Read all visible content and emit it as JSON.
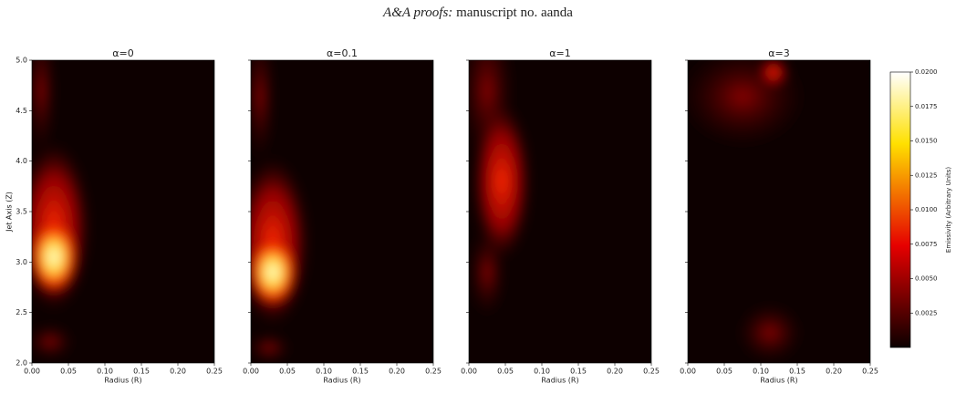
{
  "header": {
    "italic": "A&A proofs:",
    "text": "manuscript no. aanda"
  },
  "chart_data": [
    {
      "type": "heatmap",
      "title": "α=0",
      "xlabel": "Radius (R)",
      "ylabel": "Jet Axis (Z)",
      "xlim": [
        0,
        0.25
      ],
      "ylim": [
        2,
        5
      ],
      "xticks": [
        {
          "value": 0,
          "label": "0.00"
        },
        {
          "value": 0.05,
          "label": "0.05"
        },
        {
          "value": 0.1,
          "label": "0.10"
        },
        {
          "value": 0.15,
          "label": "0.15"
        },
        {
          "value": 0.2,
          "label": "0.20"
        },
        {
          "value": 0.25,
          "label": "0.25"
        }
      ],
      "yticks": [
        {
          "value": 2,
          "label": "2.0"
        },
        2.5,
        {
          "value": 3,
          "label": "3.0"
        },
        3.5,
        {
          "value": 4,
          "label": "4.0"
        },
        4.5,
        {
          "value": 5,
          "label": "5.0"
        }
      ],
      "ytick_labels": true
    },
    {
      "type": "heatmap",
      "title": "α=0.1",
      "xlabel": "Radius (R)",
      "xlim": [
        0,
        0.25
      ],
      "ylim": [
        2,
        5
      ],
      "xticks": [
        {
          "value": 0,
          "label": "0.00"
        },
        {
          "value": 0.05,
          "label": "0.05"
        },
        {
          "value": 0.1,
          "label": "0.10"
        },
        {
          "value": 0.15,
          "label": "0.15"
        },
        {
          "value": 0.2,
          "label": "0.20"
        },
        {
          "value": 0.25,
          "label": "0.25"
        }
      ],
      "yticks": [
        2,
        2.5,
        3,
        3.5,
        4,
        4.5,
        5
      ],
      "ytick_labels": false
    },
    {
      "type": "heatmap",
      "title": "α=1",
      "xlabel": "Radius (R)",
      "xlim": [
        0,
        0.25
      ],
      "ylim": [
        2,
        5
      ],
      "xticks": [
        {
          "value": 0,
          "label": "0.00"
        },
        {
          "value": 0.05,
          "label": "0.05"
        },
        {
          "value": 0.1,
          "label": "0.10"
        },
        {
          "value": 0.15,
          "label": "0.15"
        },
        {
          "value": 0.2,
          "label": "0.20"
        },
        {
          "value": 0.25,
          "label": "0.25"
        }
      ],
      "yticks": [
        2,
        2.5,
        3,
        3.5,
        4,
        4.5,
        5
      ],
      "ytick_labels": false
    },
    {
      "type": "heatmap",
      "title": "α=3",
      "xlabel": "Radius (R)",
      "xlim": [
        0,
        0.25
      ],
      "ylim": [
        2,
        5
      ],
      "xticks": [
        {
          "value": 0,
          "label": "0.00"
        },
        {
          "value": 0.05,
          "label": "0.05"
        },
        {
          "value": 0.1,
          "label": "0.10"
        },
        {
          "value": 0.15,
          "label": "0.15"
        },
        {
          "value": 0.2,
          "label": "0.20"
        },
        {
          "value": 0.25,
          "label": "0.25"
        }
      ],
      "yticks": [
        2,
        2.5,
        3,
        3.5,
        4,
        4.5,
        5
      ],
      "ytick_labels": false
    }
  ],
  "colorbar": {
    "label": "Emissivity (Arbitrary Units)",
    "lim": [
      0,
      0.02
    ],
    "colormap": "hot",
    "ticks": [
      0.0025,
      {
        "value": 0.005,
        "label": "0.0050"
      },
      0.0075,
      {
        "value": 0.01,
        "label": "0.0100"
      },
      0.0125,
      {
        "value": 0.015,
        "label": "0.0150"
      },
      0.0175,
      {
        "value": 0.02,
        "label": "0.0200"
      }
    ]
  }
}
